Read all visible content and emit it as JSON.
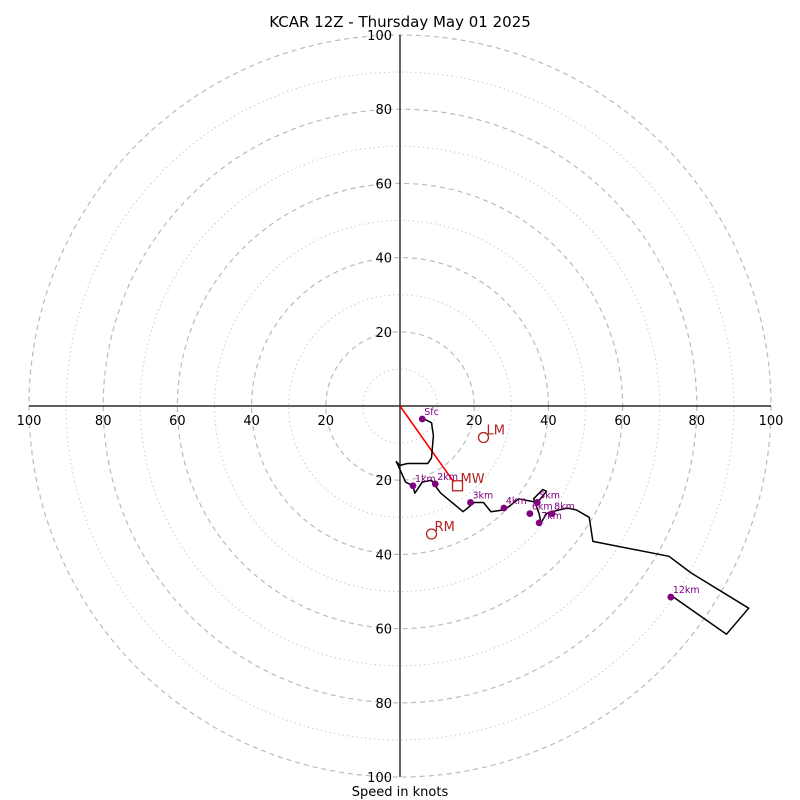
{
  "chart_data": {
    "type": "line",
    "title": "KCAR 12Z - Thursday May 01 2025",
    "xlabel": "Speed in knots",
    "ylabel": "",
    "ring_labels": [
      20,
      40,
      60,
      80,
      100
    ],
    "range": 100,
    "colors": {
      "hodograph": "#000000",
      "height_points": "#800080",
      "markers": "#b22222",
      "shear_vector": "#ff0000",
      "rings_major": "#bbbbbb",
      "rings_minor": "#cccccc"
    },
    "hodograph": {
      "u": [
        6.5,
        8.5,
        9.0,
        8.5,
        7.5,
        2.0,
        0,
        -1.0,
        1.5,
        3.5,
        4.0,
        6.0,
        8.5,
        9.5,
        11.0,
        17.0,
        20.0,
        22.5,
        24.5,
        28.0,
        29.5,
        32.0,
        37.0,
        39.5,
        38.5,
        36.0,
        37.5,
        38.0,
        39.5,
        41.0,
        45.0,
        47.5,
        51.0,
        52.0,
        72.5,
        78.5,
        94.0,
        88.0,
        73.0
      ],
      "v": [
        -3.5,
        -4.5,
        -8.0,
        -14.0,
        -15.5,
        -15.5,
        -16.0,
        -15.0,
        -20.5,
        -21.5,
        -23.5,
        -20.5,
        -20.0,
        -21.5,
        -23.5,
        -28.5,
        -26.0,
        -26.0,
        -28.5,
        -28.0,
        -27.0,
        -25.0,
        -26.0,
        -23.0,
        -22.5,
        -25.0,
        -29.0,
        -31.5,
        -29.0,
        -28.5,
        -27.5,
        -28.0,
        -30.0,
        -36.5,
        -40.5,
        -45.0,
        -54.5,
        -61.5,
        -51.0
      ]
    },
    "height_points": [
      {
        "label": "Sfc",
        "u": 6.0,
        "v": -3.5
      },
      {
        "label": "1km",
        "u": 3.5,
        "v": -21.5
      },
      {
        "label": "2km",
        "u": 9.5,
        "v": -21.0
      },
      {
        "label": "3km",
        "u": 19.0,
        "v": -26.0
      },
      {
        "label": "4km",
        "u": 28.0,
        "v": -27.5
      },
      {
        "label": "5km",
        "u": 37.0,
        "v": -26.0
      },
      {
        "label": "6km",
        "u": 35.0,
        "v": -29.0
      },
      {
        "label": "7km",
        "u": 37.5,
        "v": -31.5
      },
      {
        "label": "8km",
        "u": 41.0,
        "v": -29.0
      },
      {
        "label": "12km",
        "u": 73.0,
        "v": -51.5
      }
    ],
    "storm_markers": [
      {
        "label": "LM",
        "u": 22.5,
        "v": -8.5,
        "shape": "circle"
      },
      {
        "label": "MW",
        "u": 15.5,
        "v": -21.5,
        "shape": "square"
      },
      {
        "label": "RM",
        "u": 8.5,
        "v": -34.5,
        "shape": "circle"
      }
    ],
    "shear_vector": {
      "u0": 0,
      "v0": 0,
      "u1": 14.5,
      "v1": -20.5
    }
  }
}
